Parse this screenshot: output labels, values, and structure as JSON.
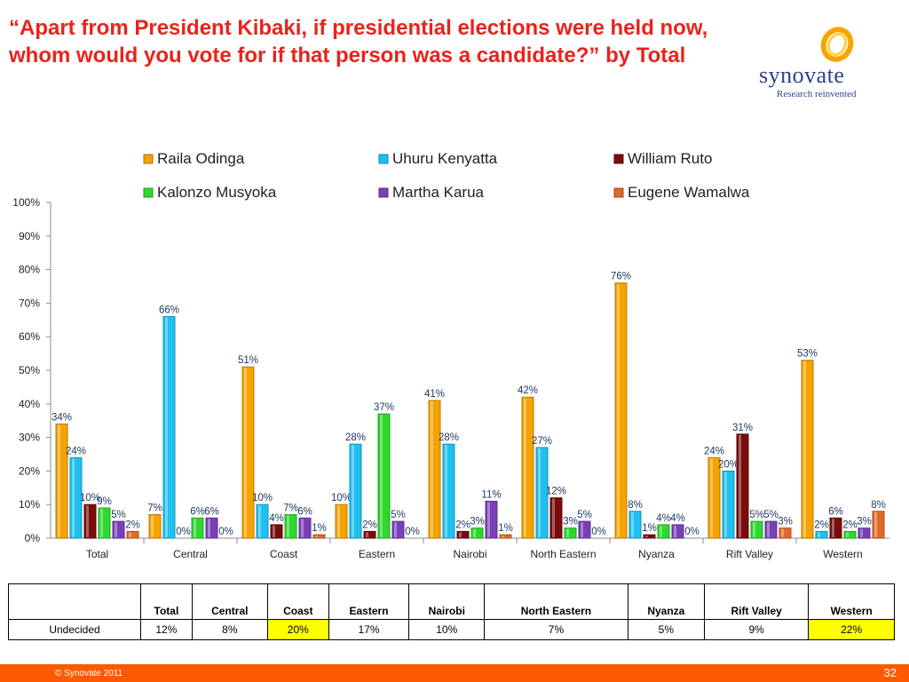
{
  "slide": {
    "title": "“Apart from President Kibaki, if presidential elections were held now, whom would you vote for if that person was a candidate?” by Total",
    "logo_name": "synovate",
    "logo_tagline": "Research reinvented",
    "copyright": "© Synovate 2011",
    "page_number": "32"
  },
  "chart_data": {
    "type": "bar",
    "categories": [
      "Total",
      "Central",
      "Coast",
      "Eastern",
      "Nairobi",
      "North Eastern",
      "Nyanza",
      "Rift Valley",
      "Western"
    ],
    "ylim": [
      0,
      100
    ],
    "yticks": [
      "0%",
      "10%",
      "20%",
      "30%",
      "40%",
      "50%",
      "60%",
      "70%",
      "80%",
      "90%",
      "100%"
    ],
    "legend_position": "top",
    "grid": false,
    "series": [
      {
        "name": "Raila Odinga",
        "color": "#f5a300",
        "values": [
          34,
          7,
          51,
          10,
          41,
          42,
          76,
          24,
          53
        ]
      },
      {
        "name": "Uhuru Kenyatta",
        "color": "#1ec0f0",
        "values": [
          24,
          66,
          10,
          28,
          28,
          27,
          8,
          20,
          2
        ]
      },
      {
        "name": "William Ruto",
        "color": "#7a0c0c",
        "values": [
          10,
          0,
          4,
          2,
          2,
          12,
          1,
          31,
          6
        ]
      },
      {
        "name": "Kalonzo Musyoka",
        "color": "#2ed82e",
        "values": [
          9,
          6,
          7,
          37,
          3,
          3,
          4,
          5,
          2
        ]
      },
      {
        "name": "Martha Karua",
        "color": "#7a3fb8",
        "values": [
          5,
          6,
          6,
          5,
          11,
          5,
          4,
          5,
          3
        ]
      },
      {
        "name": "Eugene Wamalwa",
        "color": "#e06a2a",
        "values": [
          2,
          0,
          1,
          0,
          1,
          0,
          0,
          3,
          8
        ]
      }
    ]
  },
  "undecided_table": {
    "columns": [
      "Total",
      "Central",
      "Coast",
      "Eastern",
      "Nairobi",
      "North Eastern",
      "Nyanza",
      "Rift Valley",
      "Western"
    ],
    "row_label": "Undecided",
    "values": [
      "12%",
      "8%",
      "20%",
      "17%",
      "10%",
      "7%",
      "5%",
      "9%",
      "22%"
    ],
    "highlight_color": "#ffff00",
    "highlighted": [
      "Coast",
      "Western"
    ]
  }
}
